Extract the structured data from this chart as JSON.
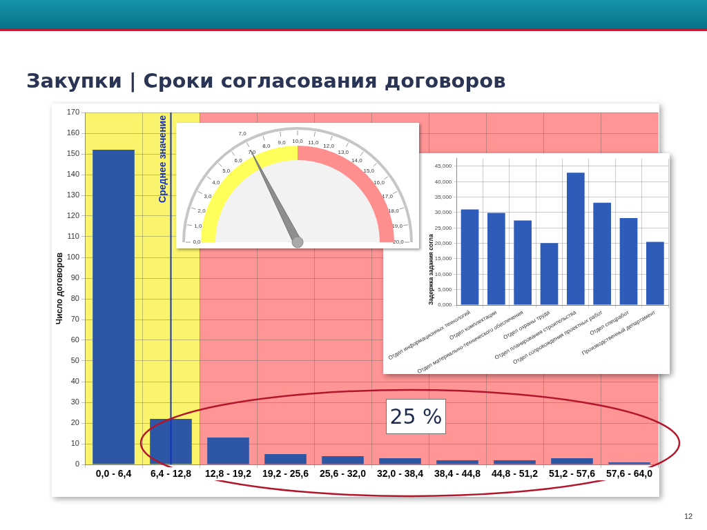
{
  "chart_data": [
    {
      "type": "bar",
      "title": "Закупки | Сроки согласования договоров",
      "ylabel": "Число договоров",
      "categories": [
        "0,0 - 6,4",
        "6,4 - 12,8",
        "12,8 - 19,2",
        "19,2 - 25,6",
        "25,6 - 32,0",
        "32,0 - 38,4",
        "38,4 - 44,8",
        "44,8 - 51,2",
        "51,2 - 57,6",
        "57,6 - 64,0"
      ],
      "values": [
        152,
        22,
        13,
        5,
        4,
        3,
        2,
        2,
        3,
        1
      ],
      "color": "#2d56a5",
      "ylim": [
        0,
        170
      ],
      "yticks": [
        0,
        10,
        20,
        30,
        40,
        50,
        60,
        70,
        80,
        90,
        100,
        110,
        120,
        130,
        140,
        150,
        160,
        170
      ],
      "grid": true,
      "bands": [
        {
          "axis": "x",
          "from": "0,0 - 6,4",
          "to": "6,4 - 12,8",
          "color": "#faf46c"
        },
        {
          "axis": "x",
          "from": "12,8 - 19,2",
          "to": "57,6 - 64,0",
          "color": "#ff9595"
        }
      ],
      "ref_lines": [
        {
          "axis": "x",
          "value": "6,4 - 12,8",
          "label": "Среднее значение",
          "color": "#1530c8"
        }
      ],
      "annotations": [
        "25 %",
        "12"
      ]
    },
    {
      "type": "donut",
      "categories": [
        null,
        null
      ],
      "values": [
        50,
        50
      ],
      "colors": [
        "#ffff5c",
        "#ff8f8f"
      ],
      "needle": null,
      "annotations": [
        "0,0",
        "1,0",
        "2,0",
        "3,0",
        "4,0",
        "5,0",
        "6,0",
        "7,0",
        "8,0",
        "9,0",
        "10,0",
        "11,0",
        "12,0",
        "13,0",
        "14,0",
        "15,0",
        "16,0",
        "17,0",
        "18,0",
        "19,0",
        "20,0",
        "7,0"
      ]
    },
    {
      "type": "bar",
      "ylabel": "Задержка задания согла",
      "categories": [
        "Отдел информационных технологий",
        "Отдел комплектации",
        "Отдел материально-технического обеспечения",
        "Отдел охраны труда",
        "Отдел планирования строительства",
        "Отдел сопровождения проектных работ",
        "Отдел спецработ",
        "Производственный департамент"
      ],
      "values": [
        31.0,
        29.9,
        27.4,
        20.1,
        42.9,
        33.2,
        28.2,
        20.5
      ],
      "color": "#2e5cb8",
      "ylim": [
        0,
        47.5
      ],
      "yticks": [
        {
          "value": 0,
          "label": "0,000"
        },
        {
          "value": 5,
          "label": "5,000"
        },
        {
          "value": 10,
          "label": "10,000"
        },
        {
          "value": 15,
          "label": "15,000"
        },
        {
          "value": 20,
          "label": "20,000"
        },
        {
          "value": 25,
          "label": "25,000"
        },
        {
          "value": 30,
          "label": "30,000"
        },
        {
          "value": 35,
          "label": "35,000"
        },
        {
          "value": 40,
          "label": "40,000"
        },
        {
          "value": 45,
          "label": "45,000"
        }
      ],
      "grid": true
    }
  ]
}
